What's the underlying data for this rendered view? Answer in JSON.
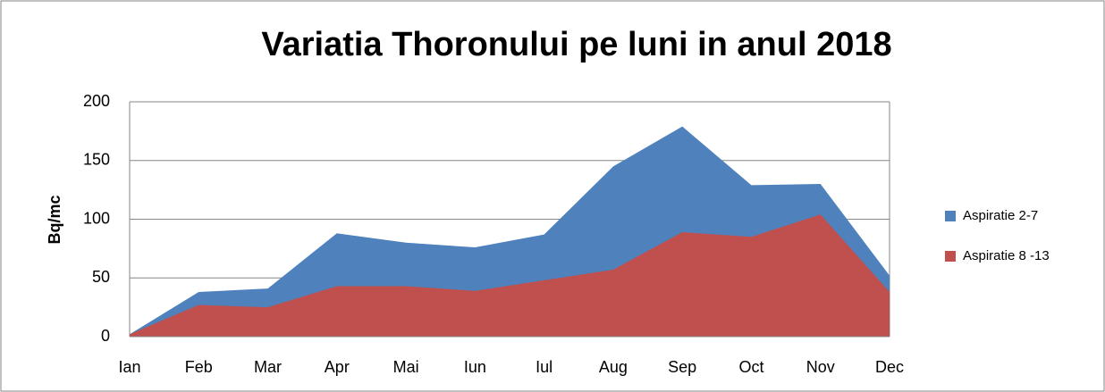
{
  "chart_data": {
    "type": "area",
    "title": "Variatia Thoronului pe luni in anul 2018",
    "y_label": "Bq/mc",
    "categories": [
      "Ian",
      "Feb",
      "Mar",
      "Apr",
      "Mai",
      "Iun",
      "Iul",
      "Aug",
      "Sep",
      "Oct",
      "Nov",
      "Dec"
    ],
    "series": [
      {
        "name": "Aspiratie 2-7",
        "color": "#4f81bd",
        "values": [
          2,
          38,
          41,
          88,
          80,
          76,
          87,
          145,
          179,
          129,
          130,
          52
        ]
      },
      {
        "name": "Aspiratie  8 -13",
        "color": "#c0504d",
        "values": [
          2,
          27,
          25,
          43,
          43,
          39,
          48,
          57,
          89,
          85,
          104,
          38
        ]
      }
    ],
    "ylim": [
      0,
      200
    ],
    "yticks": [
      0,
      50,
      100,
      150,
      200
    ],
    "grid": true,
    "legend": "right"
  }
}
